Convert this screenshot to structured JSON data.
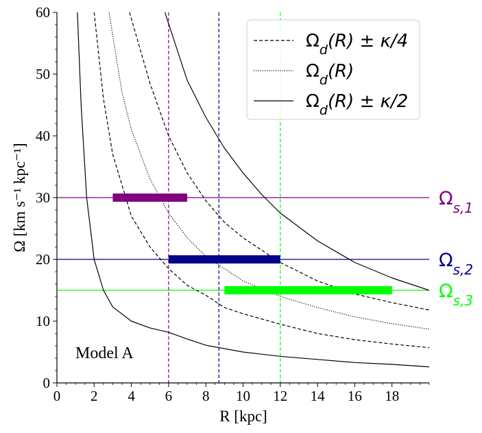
{
  "chart_data": {
    "type": "line",
    "xlabel": "R [kpc]",
    "ylabel": "Ω [km s⁻¹ kpc⁻¹]",
    "xlim": [
      0,
      20
    ],
    "ylim": [
      0,
      60
    ],
    "x_ticks": [
      0,
      2,
      4,
      6,
      8,
      10,
      12,
      14,
      16,
      18
    ],
    "y_ticks": [
      0,
      10,
      20,
      30,
      40,
      50,
      60
    ],
    "annotation": "Model A",
    "legend_position": "top-right",
    "legend": [
      {
        "label": "Ω_d(R) ± κ/4",
        "style": "dashed",
        "color": "#000000"
      },
      {
        "label": "Ω_d(R)",
        "style": "dotted",
        "color": "#000000"
      },
      {
        "label": "Ω_d(R) ± κ/2",
        "style": "solid",
        "color": "#000000"
      }
    ],
    "curves": [
      {
        "legend_ref": "Ω_d(R) ± κ/2",
        "style": "solid",
        "points": [
          [
            1.1,
            60
          ],
          [
            1.3,
            45
          ],
          [
            1.6,
            30
          ],
          [
            2.0,
            20
          ],
          [
            2.5,
            15
          ],
          [
            3.0,
            12.3
          ],
          [
            4.0,
            10.0
          ],
          [
            5.0,
            8.9
          ],
          [
            6.0,
            8.2
          ],
          [
            7.0,
            7.1
          ],
          [
            8.0,
            6.1
          ],
          [
            10.0,
            5.0
          ],
          [
            12.0,
            4.3
          ],
          [
            14.0,
            3.8
          ],
          [
            16.0,
            3.3
          ],
          [
            18.0,
            3.0
          ],
          [
            20.0,
            2.6
          ]
        ]
      },
      {
        "legend_ref": "Ω_d(R) ± κ/4",
        "style": "dashed",
        "points": [
          [
            2.0,
            60
          ],
          [
            2.5,
            46
          ],
          [
            3.0,
            37
          ],
          [
            4.0,
            27
          ],
          [
            5.0,
            22
          ],
          [
            6.0,
            18.5
          ],
          [
            7.0,
            15.8
          ],
          [
            8.0,
            14.2
          ],
          [
            9.0,
            12.2
          ],
          [
            10.0,
            11.2
          ],
          [
            12.0,
            9.5
          ],
          [
            14.0,
            8.0
          ],
          [
            16.0,
            7.0
          ],
          [
            18.0,
            6.3
          ],
          [
            20.0,
            5.7
          ]
        ]
      },
      {
        "legend_ref": "Ω_d(R)",
        "style": "dotted",
        "points": [
          [
            2.8,
            60
          ],
          [
            3.5,
            47
          ],
          [
            4.0,
            41
          ],
          [
            5.0,
            33
          ],
          [
            6.0,
            27.5
          ],
          [
            7.0,
            23.5
          ],
          [
            8.0,
            20.5
          ],
          [
            10.0,
            16.5
          ],
          [
            12.0,
            14.0
          ],
          [
            14.0,
            12.2
          ],
          [
            16.0,
            10.7
          ],
          [
            18.0,
            9.6
          ],
          [
            20.0,
            8.7
          ]
        ]
      },
      {
        "legend_ref": "Ω_d(R) ± κ/4",
        "style": "dashed",
        "points": [
          [
            3.9,
            60
          ],
          [
            5.0,
            48.5
          ],
          [
            6.0,
            40
          ],
          [
            7.0,
            34
          ],
          [
            8.0,
            29.5
          ],
          [
            9.0,
            26.0
          ],
          [
            10.0,
            23.5
          ],
          [
            12.0,
            19.5
          ],
          [
            14.0,
            16.5
          ],
          [
            16.0,
            14.4
          ],
          [
            18.0,
            13.0
          ],
          [
            20.0,
            11.8
          ]
        ]
      },
      {
        "legend_ref": "Ω_d(R) ± κ/2",
        "style": "solid",
        "points": [
          [
            5.8,
            60
          ],
          [
            7.0,
            49
          ],
          [
            8.0,
            43
          ],
          [
            9.0,
            38
          ],
          [
            10.0,
            34
          ],
          [
            11.0,
            30.5
          ],
          [
            12.0,
            27.5
          ],
          [
            14.0,
            23.0
          ],
          [
            16.0,
            19.5
          ],
          [
            18.0,
            17.0
          ],
          [
            20.0,
            15.0
          ]
        ]
      }
    ],
    "pattern_speeds": [
      {
        "label": "Ω_{s,1}",
        "value": 30,
        "color": "#800080",
        "bar_range": [
          3,
          7
        ],
        "radius_line": 6
      },
      {
        "label": "Ω_{s,2}",
        "value": 20,
        "color": "#00008b",
        "bar_range": [
          6,
          12
        ],
        "radius_line": 8.7
      },
      {
        "label": "Ω_{s,3}",
        "value": 15,
        "color": "#00ff00",
        "bar_range": [
          9,
          18
        ],
        "radius_line": 12
      }
    ]
  }
}
